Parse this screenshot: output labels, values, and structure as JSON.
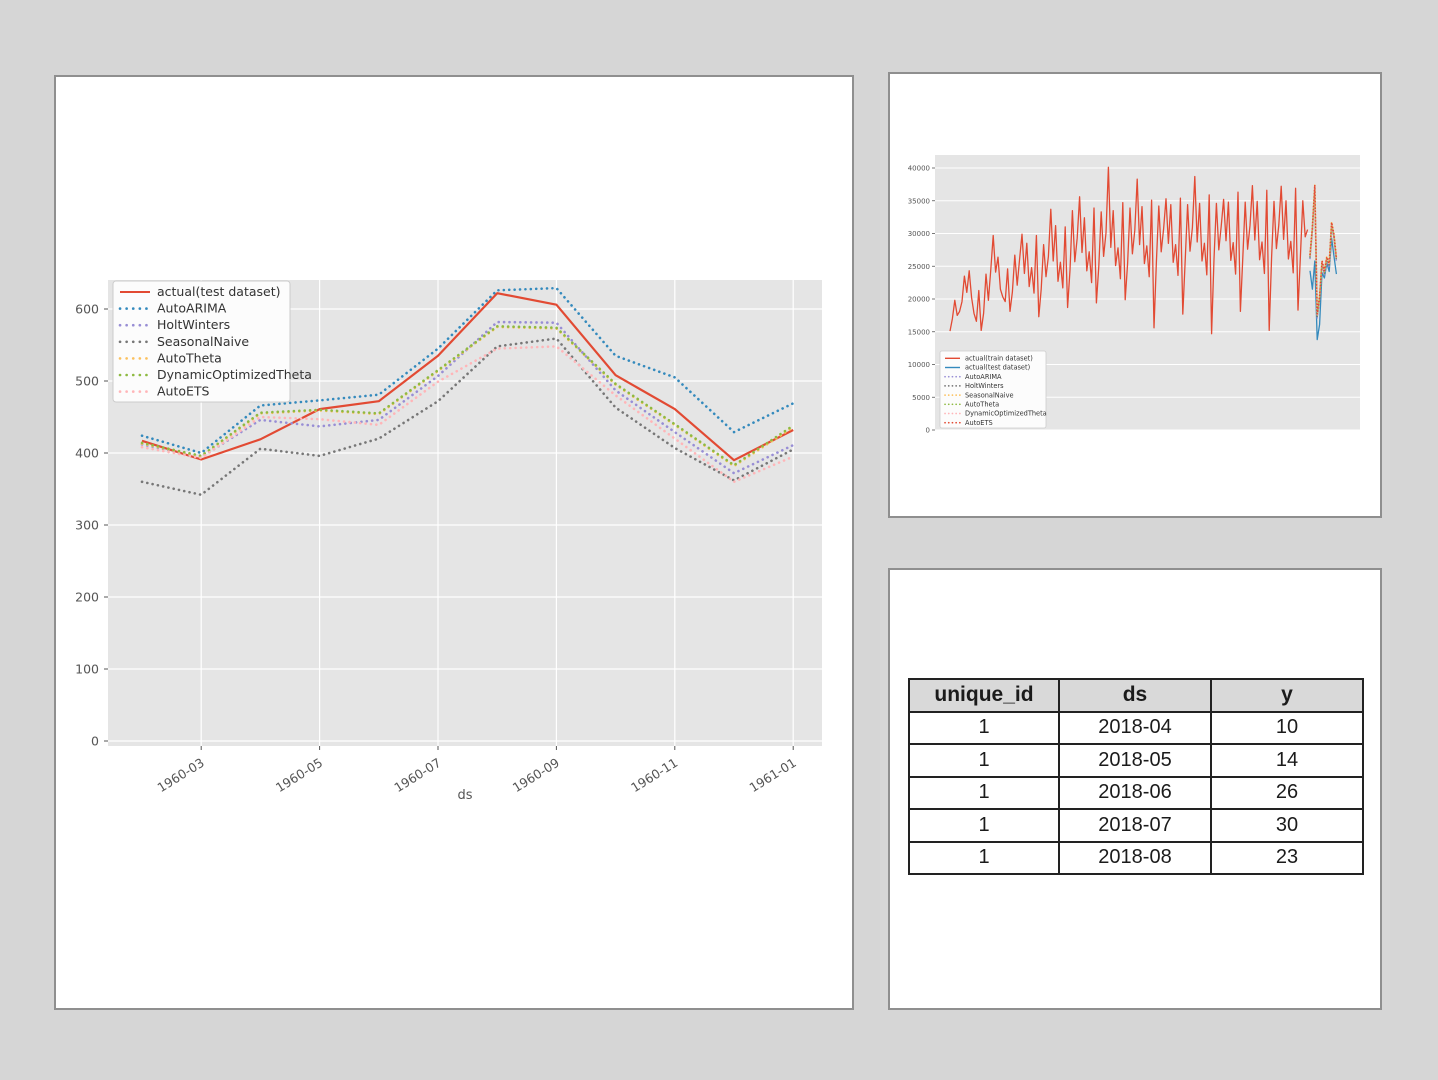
{
  "page": {
    "background": "#d6d6d6",
    "panel_border": "#8f8f8f",
    "panel_bg": "#ffffff"
  },
  "palette": {
    "axes_bg": "#e5e5e5",
    "grid": "#ffffff",
    "tick_text": "#555555",
    "legend_bg": "#fcfcfc",
    "legend_edge": "#cccccc",
    "red": "#E24A33",
    "blue": "#348ABD",
    "purple": "#988ED5",
    "gray": "#777777",
    "yellow": "#FBC15E",
    "green": "#8EBA42",
    "pink": "#FFB5B8"
  },
  "chart_data": [
    {
      "id": "forecast-comparison-chart",
      "type": "line",
      "title": "",
      "xlabel": "ds",
      "ylabel": "",
      "grid": true,
      "legend_position": "upper left",
      "ylim": [
        0,
        640
      ],
      "yticks": [
        0,
        100,
        200,
        300,
        400,
        500,
        600
      ],
      "ytick_labels": [
        "0",
        "100",
        "200",
        "300",
        "400",
        "500",
        "600"
      ],
      "x_tick_indices": [
        1,
        3,
        5,
        7,
        9,
        11
      ],
      "x_tick_labels": [
        "1960-03",
        "1960-05",
        "1960-07",
        "1960-09",
        "1960-11",
        "1961-01"
      ],
      "series": [
        {
          "name": "actual(test dataset)",
          "color": "#E24A33",
          "style": "solid",
          "values": [
            417,
            391,
            419,
            461,
            472,
            535,
            622,
            606,
            508,
            461,
            390,
            432
          ]
        },
        {
          "name": "AutoARIMA",
          "color": "#348ABD",
          "style": "dotted",
          "values": [
            424,
            400,
            466,
            473,
            481,
            545,
            626,
            629,
            535,
            505,
            429,
            469
          ]
        },
        {
          "name": "HoltWinters",
          "color": "#988ED5",
          "style": "dotted",
          "values": [
            412,
            394,
            446,
            437,
            446,
            507,
            582,
            581,
            487,
            429,
            372,
            411
          ]
        },
        {
          "name": "SeasonalNaive",
          "color": "#777777",
          "style": "dotted",
          "values": [
            360,
            342,
            406,
            396,
            420,
            472,
            548,
            559,
            463,
            407,
            362,
            405
          ]
        },
        {
          "name": "AutoTheta",
          "color": "#FBC15E",
          "style": "dotted",
          "values": [
            413,
            395,
            455,
            459,
            454,
            514,
            575,
            573,
            495,
            439,
            382,
            436
          ]
        },
        {
          "name": "DynamicOptimizedTheta",
          "color": "#8EBA42",
          "style": "dotted",
          "values": [
            414,
            396,
            456,
            460,
            455,
            515,
            576,
            574,
            496,
            440,
            383,
            438
          ]
        },
        {
          "name": "AutoETS",
          "color": "#FFB5B8",
          "style": "dotted",
          "values": [
            408,
            393,
            450,
            447,
            439,
            499,
            545,
            548,
            480,
            420,
            360,
            395
          ]
        }
      ]
    },
    {
      "id": "train-test-overview-chart",
      "type": "line",
      "title": "",
      "xlabel": "",
      "ylabel": "",
      "grid": true,
      "legend_position": "lower left",
      "ylim": [
        0,
        41800
      ],
      "yticks": [
        0,
        5000,
        10000,
        15000,
        20000,
        25000,
        30000,
        35000,
        40000
      ],
      "ytick_labels": [
        "0",
        "5000",
        "10000",
        "15000",
        "20000",
        "25000",
        "30000",
        "35000",
        "40000"
      ],
      "series": [
        {
          "name": "actual(train dataset)",
          "color": "#E24A33",
          "style": "solid",
          "segment": "train",
          "values": [
            15100,
            17000,
            19800,
            17500,
            18100,
            19600,
            23500,
            21000,
            24300,
            20200,
            17800,
            16600,
            21300,
            15200,
            17800,
            23800,
            19800,
            24500,
            29700,
            24100,
            26400,
            21500,
            20300,
            19600,
            24600,
            18100,
            21100,
            26700,
            22100,
            26100,
            29900,
            23900,
            28500,
            21900,
            24800,
            20900,
            29700,
            17300,
            21500,
            28300,
            23400,
            26500,
            33700,
            25800,
            31200,
            22700,
            25600,
            21700,
            31000,
            18700,
            24400,
            33500,
            25700,
            29300,
            35600,
            27100,
            32400,
            24300,
            27200,
            22500,
            33900,
            19400,
            25000,
            33300,
            26500,
            30100,
            40100,
            27900,
            33500,
            25100,
            27800,
            23100,
            34700,
            19900,
            25400,
            33900,
            26900,
            30500,
            38300,
            28300,
            34100,
            25400,
            28100,
            23400,
            35100,
            15600,
            25700,
            34200,
            27200,
            30700,
            35300,
            28500,
            34400,
            25600,
            28300,
            23600,
            35400,
            17700,
            25900,
            34400,
            27300,
            30900,
            38700,
            28700,
            34600,
            25800,
            28500,
            23700,
            35900,
            14700,
            26100,
            34600,
            27500,
            31100,
            35200,
            28900,
            34800,
            25900,
            28600,
            23800,
            36300,
            18100,
            26300,
            34800,
            27600,
            31200,
            37300,
            29000,
            34900,
            26000,
            28700,
            23900,
            36600,
            15200,
            26400,
            34900,
            27700,
            31300,
            37200,
            29100,
            35000,
            26100,
            28800,
            24000,
            36900,
            18300,
            26500,
            35000,
            29500,
            30600
          ]
        },
        {
          "name": "actual(test dataset)",
          "color": "#348ABD",
          "style": "solid",
          "segment": "test",
          "values": [
            24300,
            21500,
            25800,
            13800,
            16100,
            24000,
            23200,
            25500,
            24200,
            29300,
            26500,
            23800
          ]
        },
        {
          "name": "AutoARIMA",
          "color": "#988ED5",
          "style": "dotted",
          "segment": "test",
          "values": [
            26200,
            30400,
            36800,
            17100,
            19800,
            25200,
            23700,
            25800,
            24800,
            31100,
            29200,
            25700
          ]
        },
        {
          "name": "HoltWinters",
          "color": "#777777",
          "style": "dotted",
          "segment": "test",
          "values": [
            26400,
            30600,
            37000,
            17300,
            20000,
            25400,
            23900,
            26000,
            25000,
            31300,
            29400,
            25900
          ]
        },
        {
          "name": "SeasonalNaive",
          "color": "#FBC15E",
          "style": "dotted",
          "segment": "test",
          "values": [
            26900,
            31100,
            37500,
            17800,
            20500,
            25900,
            24400,
            26500,
            25500,
            31800,
            29900,
            26400
          ]
        },
        {
          "name": "AutoTheta",
          "color": "#8EBA42",
          "style": "dotted",
          "segment": "test",
          "values": [
            26600,
            30800,
            37200,
            17500,
            20200,
            25600,
            24100,
            26200,
            25200,
            31500,
            29600,
            26100
          ]
        },
        {
          "name": "DynamicOptimizedTheta",
          "color": "#FFB5B8",
          "style": "dotted",
          "segment": "test",
          "values": [
            26700,
            30900,
            37300,
            17600,
            20300,
            25700,
            24200,
            26300,
            25300,
            31600,
            29700,
            26200
          ]
        },
        {
          "name": "AutoETS",
          "color": "#E24A33",
          "style": "dotted",
          "segment": "test",
          "values": [
            26800,
            31000,
            37400,
            17700,
            20400,
            25800,
            24300,
            26400,
            25400,
            31700,
            29800,
            26300
          ]
        }
      ]
    },
    {
      "id": "input-data-table",
      "type": "table",
      "columns": [
        "unique_id",
        "ds",
        "y"
      ],
      "rows": [
        [
          "1",
          "2018-04",
          "10"
        ],
        [
          "1",
          "2018-05",
          "14"
        ],
        [
          "1",
          "2018-06",
          "26"
        ],
        [
          "1",
          "2018-07",
          "30"
        ],
        [
          "1",
          "2018-08",
          "23"
        ]
      ]
    }
  ]
}
